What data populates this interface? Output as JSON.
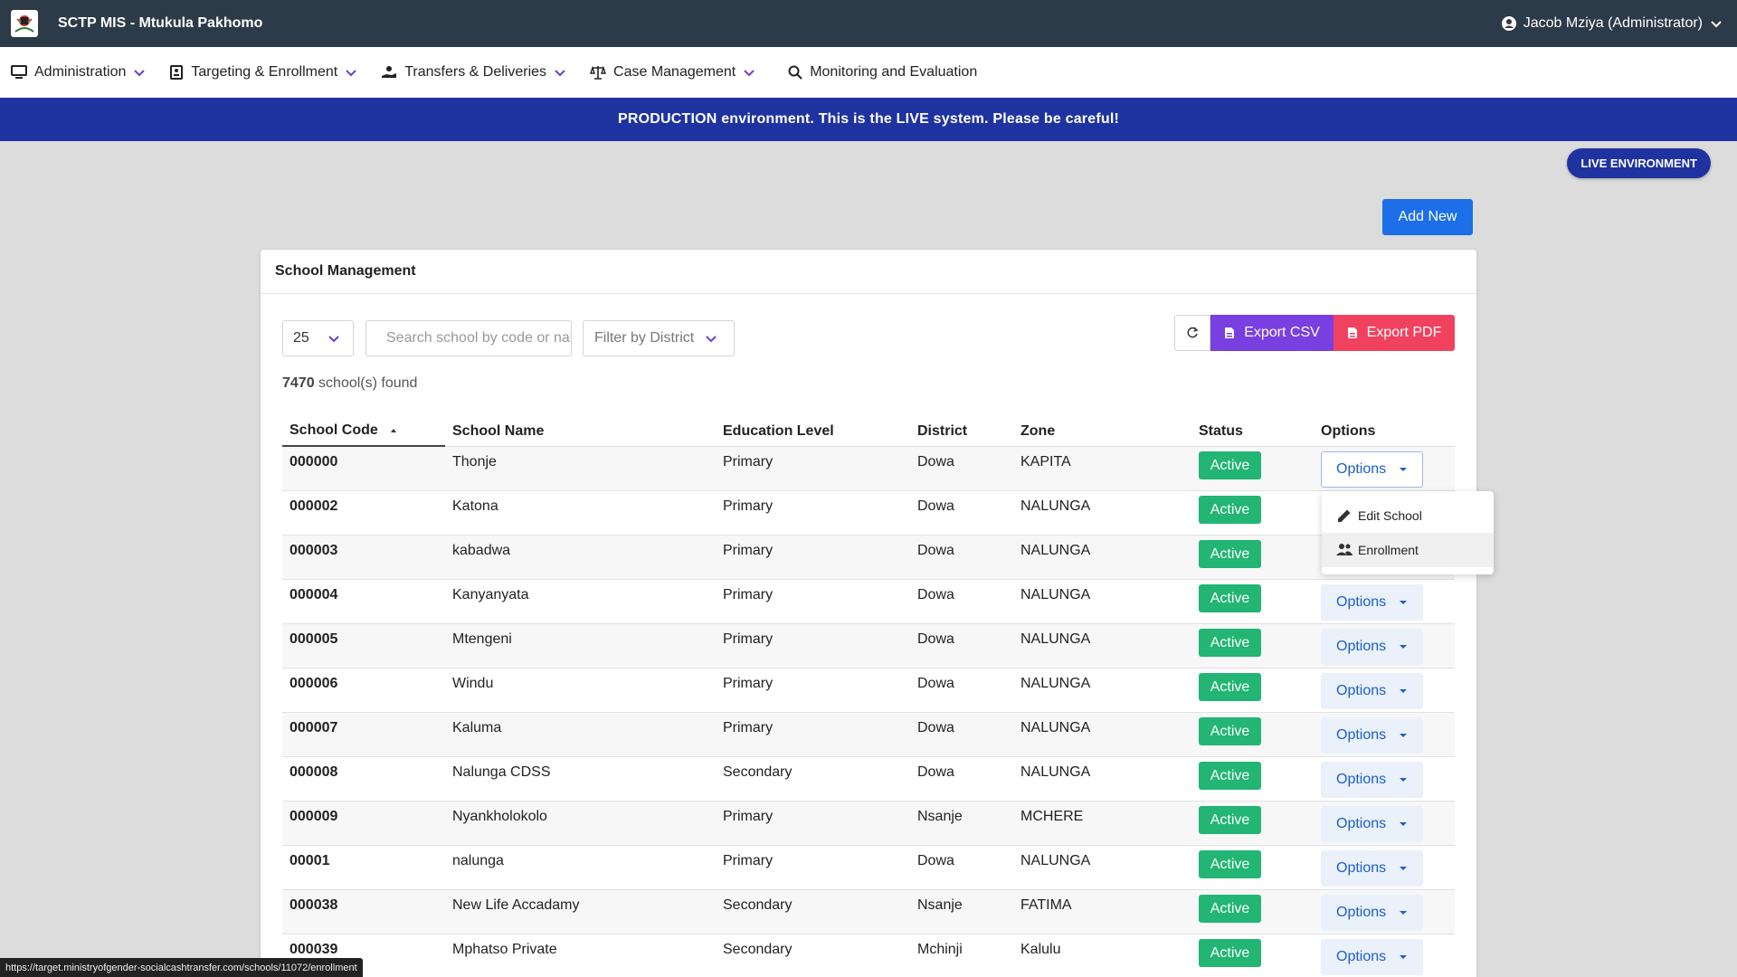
{
  "header": {
    "app_title": "SCTP MIS - Mtukula Pakhomo",
    "user": "Jacob Mziya (Administrator)"
  },
  "nav": {
    "items": [
      {
        "label": "Administration",
        "icon": "monitor-icon",
        "dropdown": true
      },
      {
        "label": "Targeting & Enrollment",
        "icon": "id-card-icon",
        "dropdown": true
      },
      {
        "label": "Transfers & Deliveries",
        "icon": "hand-coin-icon",
        "dropdown": true
      },
      {
        "label": "Case Management",
        "icon": "scale-icon",
        "dropdown": true
      },
      {
        "label": "Monitoring and Evaluation",
        "icon": "search-icon",
        "dropdown": false
      }
    ]
  },
  "banner": {
    "text": "PRODUCTION environment. This is the LIVE system. Please be careful!"
  },
  "env_badge": {
    "text": "LIVE ENVIRONMENT"
  },
  "add_new": {
    "label": "Add New"
  },
  "card": {
    "title": "School Management",
    "page_size": "25",
    "search_placeholder": "Search school by code or name",
    "district_filter": "Filter by District",
    "export_csv": "Export CSV",
    "export_pdf": "Export PDF",
    "found_count": "7470",
    "found_suffix": "school(s) found"
  },
  "table": {
    "columns": [
      "School Code",
      "School Name",
      "Education Level",
      "District",
      "Zone",
      "Status",
      "Options"
    ],
    "options_label": "Options",
    "rows": [
      {
        "code": "000000",
        "name": "Thonje",
        "level": "Primary",
        "district": "Dowa",
        "zone": "KAPITA",
        "status": "Active"
      },
      {
        "code": "000002",
        "name": "Katona",
        "level": "Primary",
        "district": "Dowa",
        "zone": "NALUNGA",
        "status": "Active"
      },
      {
        "code": "000003",
        "name": "kabadwa",
        "level": "Primary",
        "district": "Dowa",
        "zone": "NALUNGA",
        "status": "Active"
      },
      {
        "code": "000004",
        "name": "Kanyanyata",
        "level": "Primary",
        "district": "Dowa",
        "zone": "NALUNGA",
        "status": "Active"
      },
      {
        "code": "000005",
        "name": "Mtengeni",
        "level": "Primary",
        "district": "Dowa",
        "zone": "NALUNGA",
        "status": "Active"
      },
      {
        "code": "000006",
        "name": "Windu",
        "level": "Primary",
        "district": "Dowa",
        "zone": "NALUNGA",
        "status": "Active"
      },
      {
        "code": "000007",
        "name": "Kaluma",
        "level": "Primary",
        "district": "Dowa",
        "zone": "NALUNGA",
        "status": "Active"
      },
      {
        "code": "000008",
        "name": "Nalunga CDSS",
        "level": "Secondary",
        "district": "Dowa",
        "zone": "NALUNGA",
        "status": "Active"
      },
      {
        "code": "000009",
        "name": "Nyankholokolo",
        "level": "Primary",
        "district": "Nsanje",
        "zone": "MCHERE",
        "status": "Active"
      },
      {
        "code": "00001",
        "name": "nalunga",
        "level": "Primary",
        "district": "Dowa",
        "zone": "NALUNGA",
        "status": "Active"
      },
      {
        "code": "000038",
        "name": "New Life Accadamy",
        "level": "Secondary",
        "district": "Nsanje",
        "zone": "FATIMA",
        "status": "Active"
      },
      {
        "code": "000039",
        "name": "Mphatso Private",
        "level": "Secondary",
        "district": "Mchinji",
        "zone": "Kalulu",
        "status": "Active"
      }
    ]
  },
  "dropdown": {
    "items": [
      {
        "label": "Edit School",
        "icon": "pencil-icon"
      },
      {
        "label": "Enrollment",
        "icon": "people-icon"
      }
    ]
  },
  "status_url": "https://target.ministryofgender-socialcashtransfer.com/schools/11072/enrollment",
  "colors": {
    "topbar": "#2d3a48",
    "banner": "#1f33a0",
    "primary": "#1c6fe8",
    "export_csv": "#7a3fe0",
    "export_pdf": "#f0425f",
    "active_badge": "#22b573",
    "accent_chevron": "#6b3fd0"
  }
}
